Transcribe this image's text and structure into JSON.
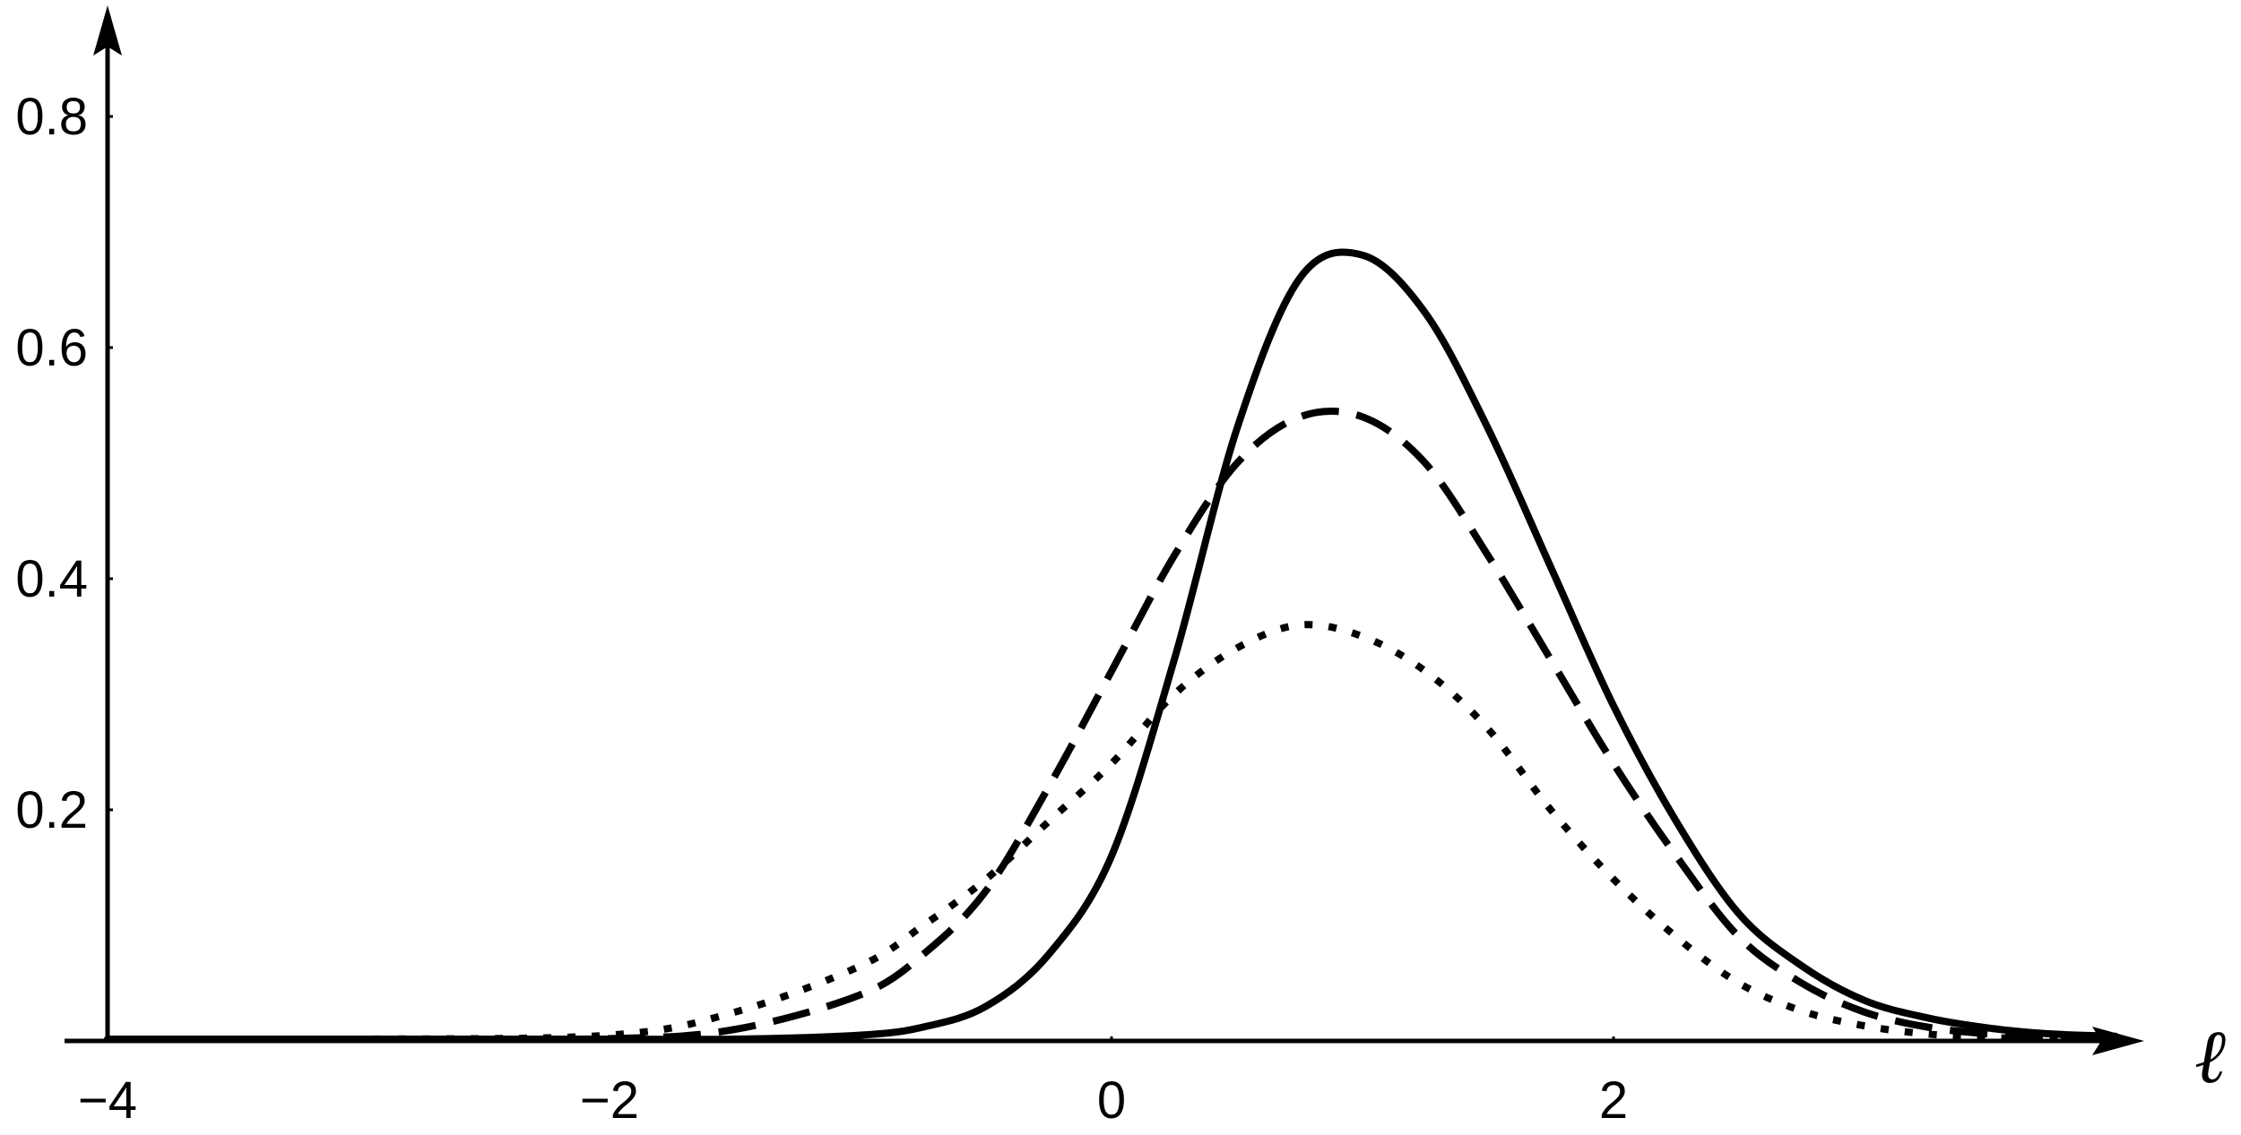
{
  "chart_data": {
    "type": "line",
    "title": "",
    "xlabel": "ℓ",
    "ylabel": "",
    "xlim": [
      -4,
      4.2
    ],
    "ylim": [
      0,
      0.88
    ],
    "x_ticks": [
      -4,
      -2,
      0,
      2
    ],
    "x_tick_labels": [
      "−4",
      "−2",
      "0",
      "2"
    ],
    "y_ticks": [
      0.2,
      0.4,
      0.6,
      0.8
    ],
    "y_tick_labels": [
      "0.2",
      "0.4",
      "0.6",
      "0.8"
    ],
    "grid": false,
    "legend": "none",
    "x": [
      -4.0,
      -3.0,
      -2.0,
      -1.5,
      -1.0,
      -0.75,
      -0.5,
      -0.25,
      0.0,
      0.25,
      0.5,
      0.75,
      1.0,
      1.25,
      1.5,
      1.75,
      2.0,
      2.25,
      2.5,
      2.75,
      3.0,
      3.25,
      3.5,
      3.75,
      4.0
    ],
    "series": [
      {
        "style": "solid",
        "color": "#000000",
        "values": [
          0.0,
          0.0,
          0.0,
          0.0,
          0.005,
          0.012,
          0.03,
          0.075,
          0.16,
          0.33,
          0.53,
          0.66,
          0.68,
          0.63,
          0.53,
          0.41,
          0.29,
          0.19,
          0.11,
          0.065,
          0.035,
          0.02,
          0.011,
          0.006,
          0.004
        ]
      },
      {
        "style": "dashed",
        "color": "#000000",
        "values": [
          0.0,
          0.0,
          0.002,
          0.01,
          0.04,
          0.075,
          0.13,
          0.22,
          0.32,
          0.42,
          0.5,
          0.54,
          0.54,
          0.5,
          0.42,
          0.33,
          0.24,
          0.16,
          0.09,
          0.05,
          0.025,
          0.012,
          0.006,
          0.003,
          0.001
        ]
      },
      {
        "style": "dotted",
        "color": "#000000",
        "values": [
          0.0,
          0.0,
          0.005,
          0.025,
          0.065,
          0.1,
          0.14,
          0.19,
          0.24,
          0.3,
          0.34,
          0.36,
          0.35,
          0.32,
          0.27,
          0.2,
          0.14,
          0.09,
          0.05,
          0.026,
          0.013,
          0.006,
          0.003,
          0.001,
          0.0
        ]
      }
    ]
  }
}
